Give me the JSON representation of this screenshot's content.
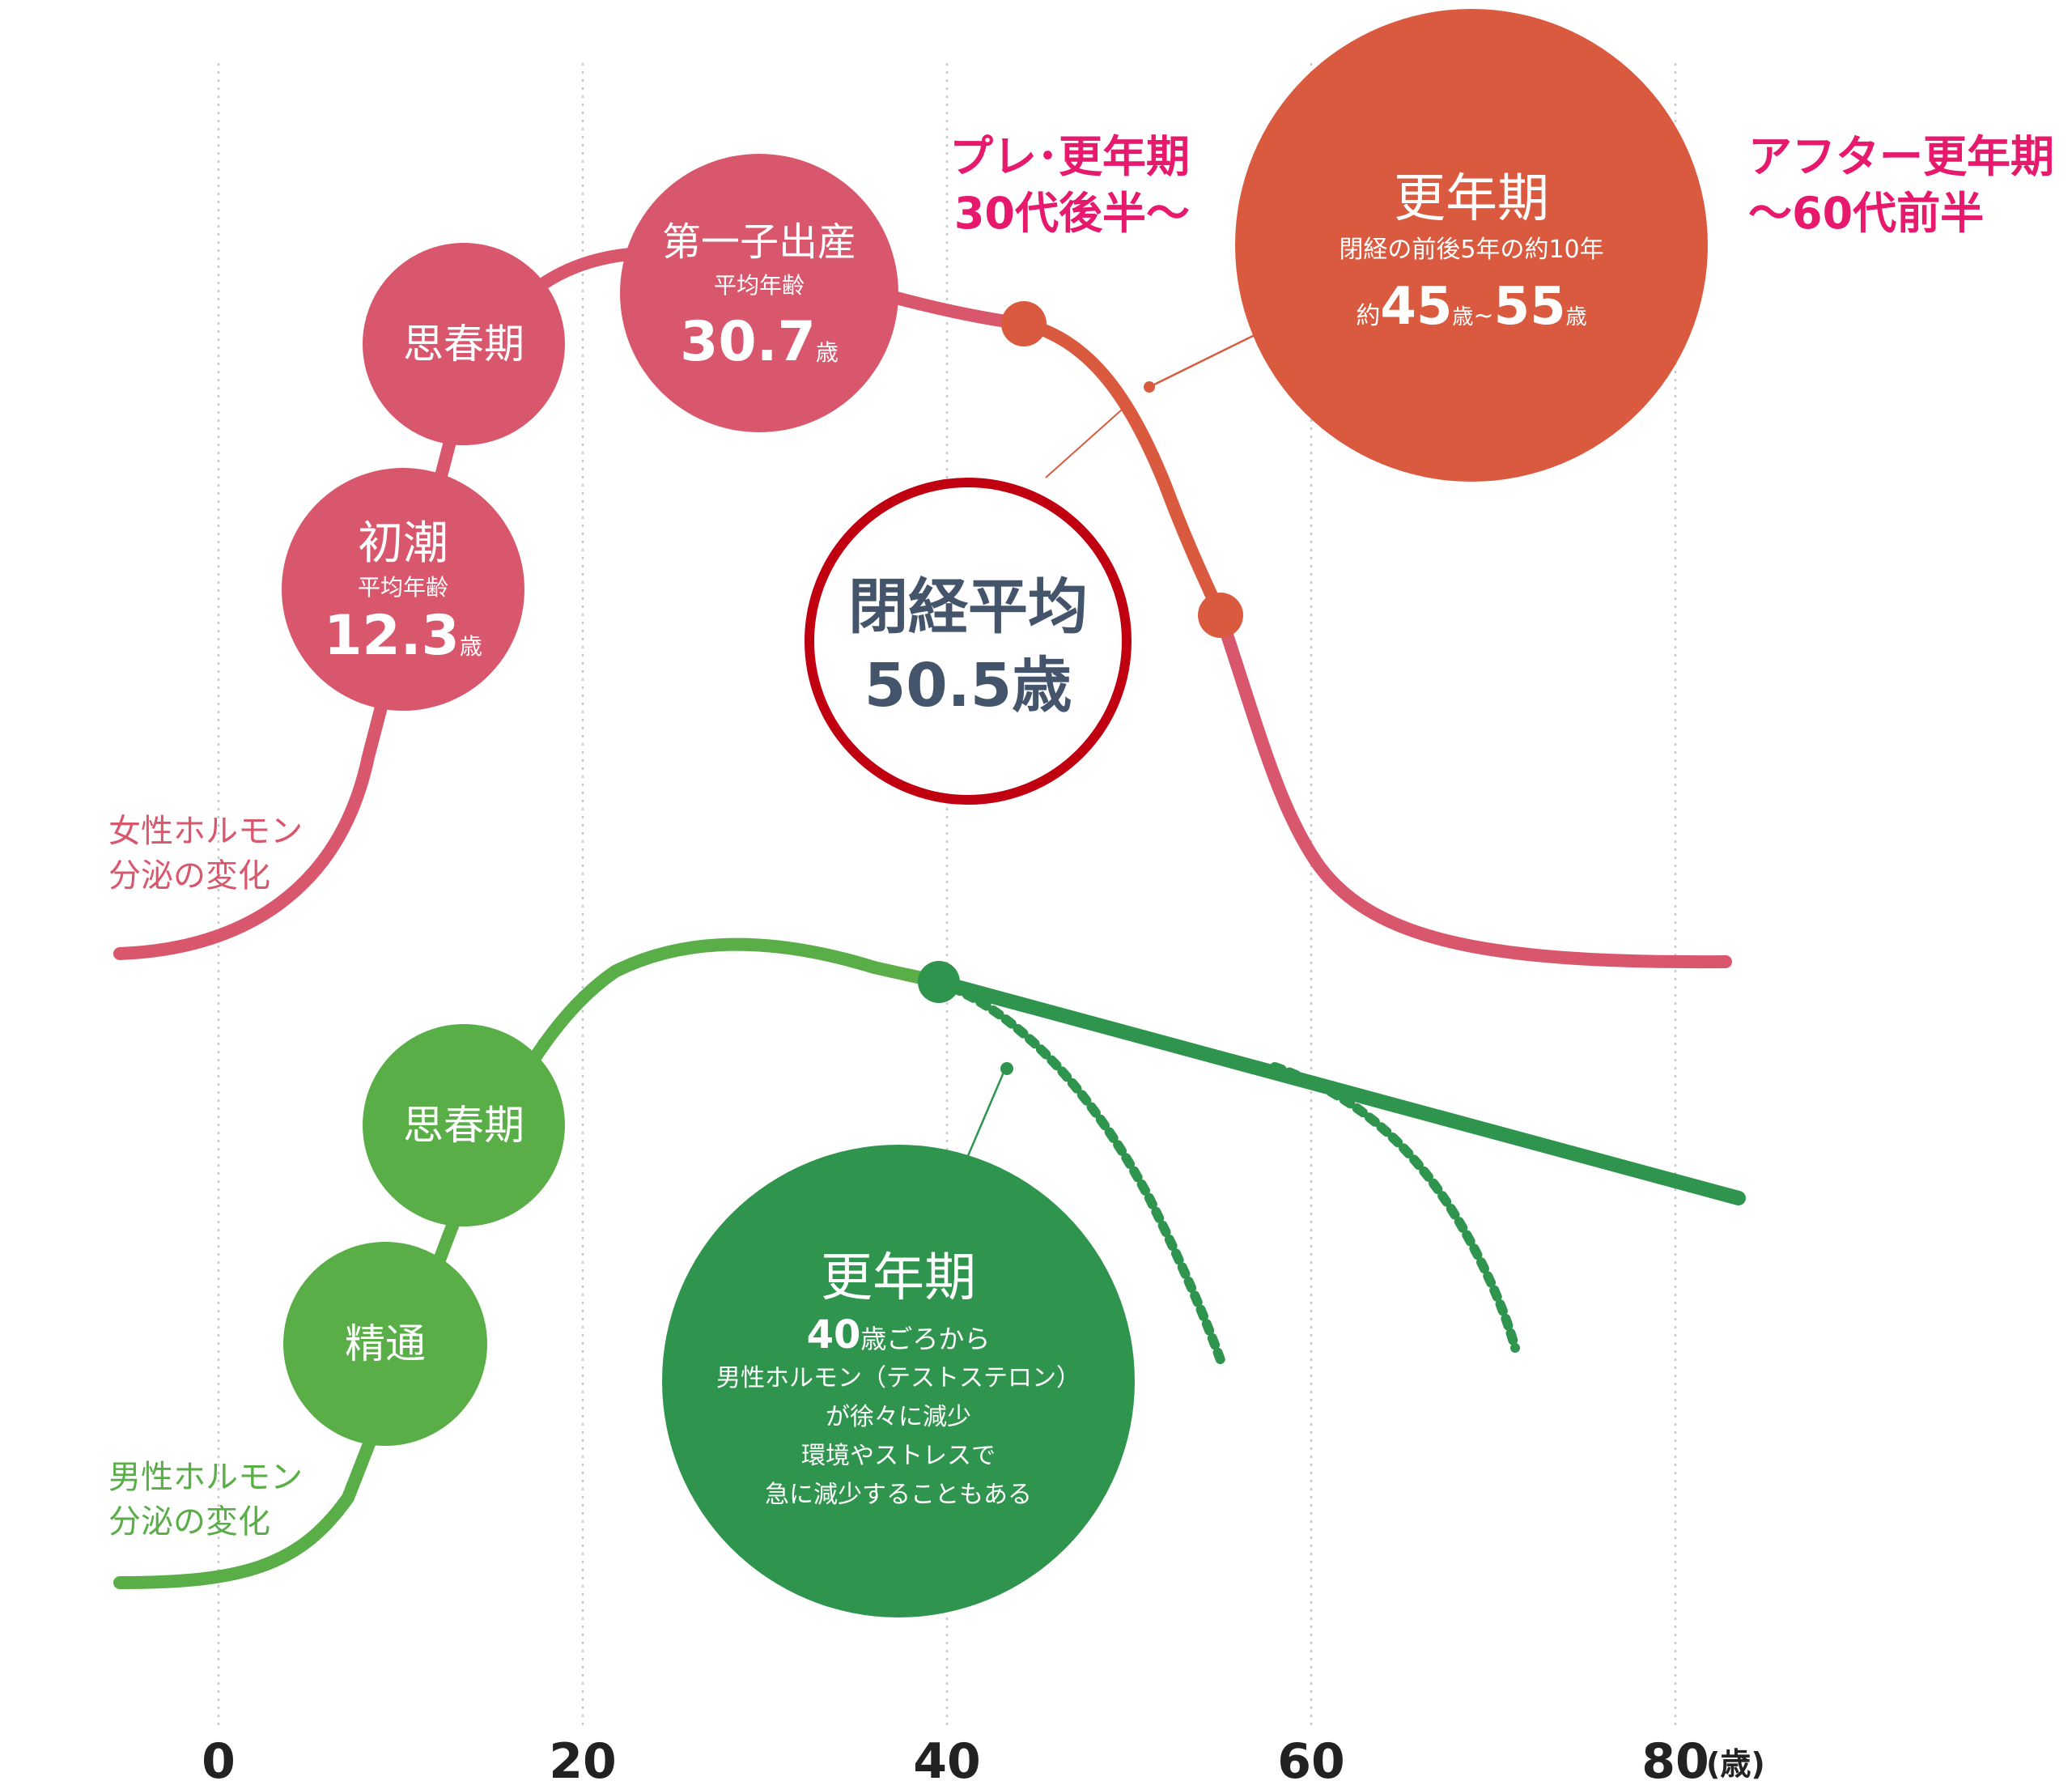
{
  "colors": {
    "female": "#d9576c",
    "female_dark": "#d95a3e",
    "male": "#5aae48",
    "male_dark": "#2f944d",
    "accent_text": "#e6196d",
    "outline_red": "#c00010",
    "dark_text": "#44546a",
    "grid": "#c8c8c8"
  },
  "axis": {
    "ticks": [
      "0",
      "20",
      "40",
      "60",
      "80"
    ],
    "unit": "(歳)"
  },
  "female": {
    "series_label_1": "女性ホルモン",
    "series_label_2": "分泌の変化",
    "puberty": "思春期",
    "menarche": {
      "title": "初潮",
      "sub": "平均年齢",
      "num": "12.3",
      "unit": "歳"
    },
    "first_birth": {
      "title": "第一子出産",
      "sub": "平均年齢",
      "num": "30.7",
      "unit": "歳"
    },
    "menopause": {
      "title": "更年期",
      "sub": "閉経の前後5年の約10年",
      "pre": "約",
      "num1": "45",
      "unit1": "歳",
      "tilde": "~",
      "num2": "55",
      "unit2": "歳"
    },
    "avg_menopause_line1": "閉経平均",
    "avg_menopause_line2": "50.5歳"
  },
  "phases": {
    "pre_line1": "プレ･更年期",
    "pre_line2": "30代後半～",
    "after_line1": "アフター更年期",
    "after_line2": "～60代前半"
  },
  "male": {
    "series_label_1": "男性ホルモン",
    "series_label_2": "分泌の変化",
    "puberty": "思春期",
    "first_ejaculation": "精通",
    "andropause": {
      "title": "更年期",
      "line1_num": "40",
      "line1_text": "歳ごろから",
      "line2": "男性ホルモン（テストステロン）",
      "line3": "が徐々に減少",
      "line4": "環境やストレスで",
      "line5": "急に減少することもある"
    }
  }
}
